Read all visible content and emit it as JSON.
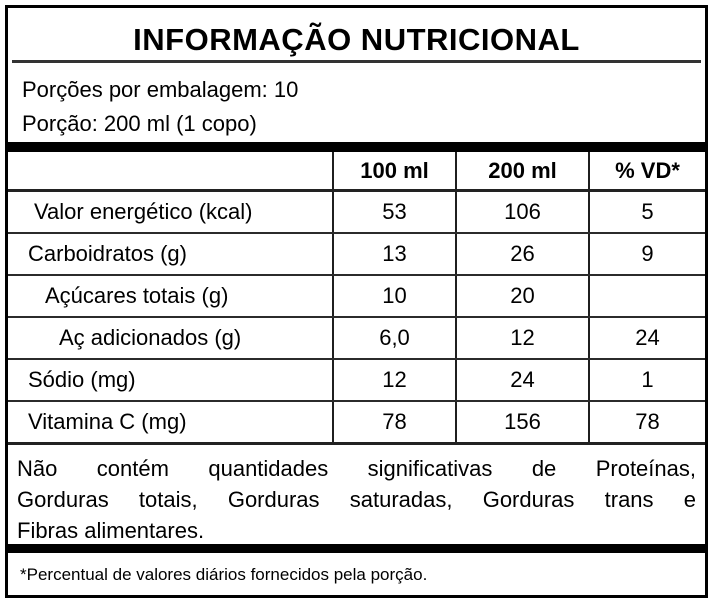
{
  "label": {
    "title": "INFORMAÇÃO NUTRICIONAL",
    "servings_per_package": "Porções por embalagem: 10",
    "serving_size": "Porção: 200 ml (1 copo)",
    "columns": [
      "",
      "100 ml",
      "200 ml",
      "% VD*"
    ],
    "rows": [
      {
        "name": "Valor energético (kcal)",
        "per_100ml": "53",
        "per_200ml": "106",
        "pct_vd": "5",
        "indent": 0
      },
      {
        "name": "Carboidratos (g)",
        "per_100ml": "13",
        "per_200ml": "26",
        "pct_vd": "9",
        "indent": 0
      },
      {
        "name": "Açúcares totais (g)",
        "per_100ml": "10",
        "per_200ml": "20",
        "pct_vd": "",
        "indent": 1
      },
      {
        "name": "Aç adicionados (g)",
        "per_100ml": "6,0",
        "per_200ml": "12",
        "pct_vd": "24",
        "indent": 2
      },
      {
        "name": "Sódio (mg)",
        "per_100ml": "12",
        "per_200ml": "24",
        "pct_vd": "1",
        "indent": 0
      },
      {
        "name": "Vitamina C (mg)",
        "per_100ml": "78",
        "per_200ml": "156",
        "pct_vd": "78",
        "indent": 0
      }
    ],
    "note_lines": [
      "Não contém quantidades significativas de Proteínas,",
      "Gorduras totais, Gorduras saturadas, Gorduras trans e",
      "Fibras alimentares."
    ],
    "footnote": "*Percentual de valores diários fornecidos pela porção.",
    "colors": {
      "background": "#ffffff",
      "border": "#000000",
      "rule": "#333333",
      "text": "#000000"
    }
  }
}
